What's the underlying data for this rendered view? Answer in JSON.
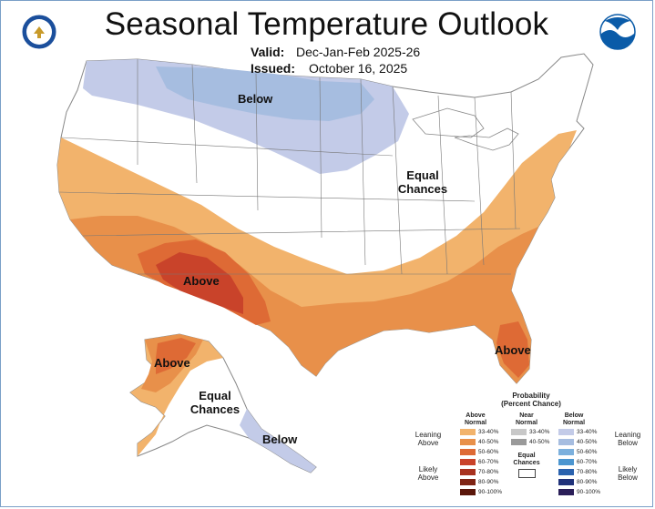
{
  "title": "Seasonal Temperature Outlook",
  "valid": {
    "label": "Valid:",
    "value": "Dec-Jan-Feb 2025-26"
  },
  "issued": {
    "label": "Issued:",
    "value": "October 16, 2025"
  },
  "logos": {
    "left": "commerce-seal-icon",
    "right": "noaa-logo-icon"
  },
  "map_labels": {
    "below_north": "Below",
    "equal_chances_conus": "Equal Chances",
    "above_southwest": "Above",
    "above_florida": "Above",
    "above_alaska": "Above",
    "equal_chances_alaska": "Equal Chances",
    "below_alaska": "Below"
  },
  "legend": {
    "title": "Probability",
    "subtitle": "(Percent Chance)",
    "above_header": "Above Normal",
    "near_header": "Near Normal",
    "below_header": "Below Normal",
    "leaning_above": "Leaning Above",
    "likely_above": "Likely Above",
    "leaning_below": "Leaning Below",
    "likely_below": "Likely Below",
    "equal_chances": "Equal Chances",
    "above_levels": [
      "33-40%",
      "40-50%",
      "50-60%",
      "60-70%",
      "70-80%",
      "80-90%",
      "90-100%"
    ],
    "near_levels": [
      "33-40%",
      "40-50%"
    ],
    "below_levels": [
      "33-40%",
      "40-50%",
      "50-60%",
      "60-70%",
      "70-80%",
      "80-90%",
      "90-100%"
    ]
  },
  "colors": {
    "above": [
      "#f2b36c",
      "#e8904a",
      "#de6a35",
      "#c9432a",
      "#a8321f",
      "#7f2414",
      "#5a160a"
    ],
    "near": [
      "#c8c8c8",
      "#9a9a9a"
    ],
    "below": [
      "#c3cbe8",
      "#a6bde0",
      "#7cb0dd",
      "#4c96d0",
      "#2a62ae",
      "#20327a",
      "#2a1e58"
    ],
    "border": "#7a9fc7"
  }
}
